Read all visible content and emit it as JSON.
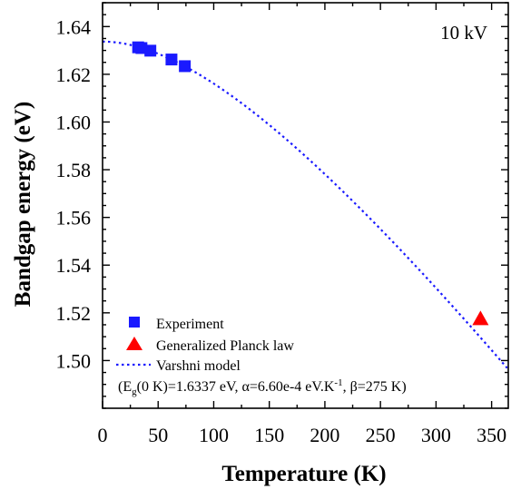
{
  "chart_data": {
    "type": "scatter",
    "annotation": "10 kV",
    "xlabel": "Temperature (K)",
    "ylabel": "Bandgap energy (eV)",
    "xlim": [
      0,
      365
    ],
    "ylim": [
      1.48,
      1.65
    ],
    "xticks": [
      0,
      50,
      100,
      150,
      200,
      250,
      300,
      350
    ],
    "yticks": [
      1.5,
      1.52,
      1.54,
      1.56,
      1.58,
      1.6,
      1.62,
      1.64
    ],
    "grid": false,
    "legend_position": "bottom-left",
    "series": [
      {
        "name": "Experiment",
        "kind": "scatter",
        "marker": "square",
        "color": "#1a1aff",
        "x": [
          32,
          35,
          43,
          62,
          74
        ],
        "y": [
          1.6313,
          1.631,
          1.6299,
          1.6262,
          1.6234
        ]
      },
      {
        "name": "Generalized Planck law",
        "kind": "scatter",
        "marker": "triangle",
        "color": "#ff0000",
        "x": [
          340
        ],
        "y": [
          1.5175
        ]
      },
      {
        "name": "Varshni model",
        "kind": "line",
        "style": "dotted",
        "color": "#1a1aff",
        "model": {
          "Eg0": 1.6337,
          "alpha": 0.00066,
          "beta": 275
        }
      }
    ],
    "params_note": {
      "prefix": "(E",
      "sub": "g",
      "mid": "(0 K)=1.6337 eV, α=6.60e-4 eV.K",
      "sup": "-1",
      "suffix": ", β=275 K)"
    }
  }
}
